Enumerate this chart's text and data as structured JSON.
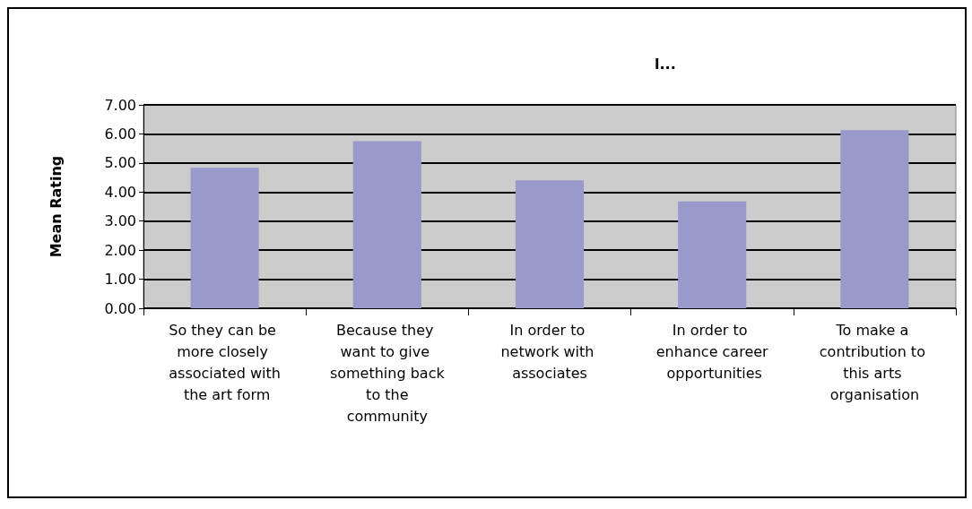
{
  "chart_data": {
    "type": "bar",
    "title": "l...",
    "ylabel": "Mean Rating",
    "categories": [
      "So they can be more closely associated with the art form",
      "Because they want to give something back to the community",
      "In order to network with associates",
      "In order to enhance career opportunities",
      "To make a contribution to this arts organisation"
    ],
    "values": [
      4.83,
      5.75,
      4.4,
      3.68,
      6.13
    ],
    "color": "#9999cc",
    "ylim": [
      0,
      7
    ],
    "yticks": [
      {
        "value": 0,
        "label": "0.00"
      },
      {
        "value": 1,
        "label": "1.00"
      },
      {
        "value": 2,
        "label": "2.00"
      },
      {
        "value": 3,
        "label": "3.00"
      },
      {
        "value": 4,
        "label": "4.00"
      },
      {
        "value": 5,
        "label": "5.00"
      },
      {
        "value": 6,
        "label": "6.00"
      },
      {
        "value": 7,
        "label": "7.00"
      }
    ],
    "grid": "y"
  }
}
